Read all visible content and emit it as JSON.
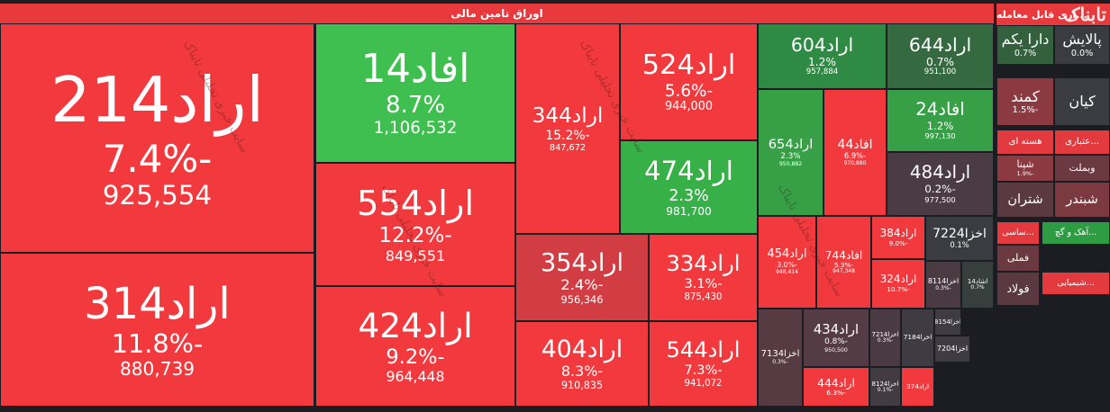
{
  "header": {
    "title": "اوراق تامین مالی"
  },
  "tiles": [
    {
      "name": "اراد214",
      "change": "-7.4%",
      "value": "925,554",
      "color": "#f23a3e"
    },
    {
      "name": "اراد314",
      "change": "-11.8%",
      "value": "880,739",
      "color": "#f23a3e"
    },
    {
      "name": "افاد14",
      "change": "8.7%",
      "value": "1,106,532",
      "color": "#3fbf4f"
    },
    {
      "name": "اراد554",
      "change": "-12.2%",
      "value": "849,551",
      "color": "#f23a3e"
    },
    {
      "name": "اراد424",
      "change": "-9.2%",
      "value": "964,448",
      "color": "#f23a3e"
    },
    {
      "name": "اراد344",
      "change": "-15.2%",
      "value": "847,672",
      "color": "#f23a3e"
    },
    {
      "name": "اراد524",
      "change": "-5.6%",
      "value": "944,000",
      "color": "#f23a3e"
    },
    {
      "name": "اراد474",
      "change": "2.3%",
      "value": "981,700",
      "color": "#36b047"
    },
    {
      "name": "اراد354",
      "change": "-2.4%",
      "value": "956,346",
      "color": "#d13d42"
    },
    {
      "name": "اراد334",
      "change": "-3.1%",
      "value": "875,430",
      "color": "#f23a3e"
    },
    {
      "name": "اراد404",
      "change": "-8.3%",
      "value": "910,835",
      "color": "#f23a3e"
    },
    {
      "name": "اراد544",
      "change": "-7.3%",
      "value": "941,072",
      "color": "#f23a3e"
    },
    {
      "name": "اراد604",
      "change": "1.2%",
      "value": "957,884",
      "color": "#2f8a43"
    },
    {
      "name": "اراد644",
      "change": "0.7%",
      "value": "951,100",
      "color": "#356a40"
    },
    {
      "name": "اراد654",
      "change": "2.3%",
      "value": "950,882",
      "color": "#37a047"
    },
    {
      "name": "افاد44",
      "change": "-6.9%",
      "value": "970,880",
      "color": "#f23a3e"
    },
    {
      "name": "افاد24",
      "change": "1.2%",
      "value": "997,130",
      "color": "#37a047"
    },
    {
      "name": "اراد484",
      "change": "-0.2%",
      "value": "977,500",
      "color": "#4b3b42"
    },
    {
      "name": "اراد454",
      "change": "-3.0%",
      "value": "948,414",
      "color": "#f23a3e"
    },
    {
      "name": "افاد744",
      "change": "-5.3%",
      "value": "947,348",
      "color": "#f23a3e"
    },
    {
      "name": "اراد384",
      "change": "-9.0%",
      "color": "#f23a3e"
    },
    {
      "name": "اراد324",
      "change": "-10.7%",
      "color": "#f23a3e"
    },
    {
      "name": "اخزا7224",
      "change": "0.1%",
      "color": "#3a3c42"
    },
    {
      "name": "اخزا8114",
      "change": "-0.3%",
      "color": "#4a3a42"
    },
    {
      "name": "اشاد14",
      "change": "0.7%",
      "color": "#363f3c"
    },
    {
      "name": "اخزا7134",
      "change": "-0.3%",
      "color": "#573b43"
    },
    {
      "name": "اراد434",
      "change": "-0.8%",
      "value": "950,500",
      "color": "#553b43"
    },
    {
      "name": "اراد444",
      "change": "-6.3%",
      "color": "#f23a3e"
    },
    {
      "name": "اخزا7214",
      "change": "-0.3%",
      "color": "#4a3a42"
    },
    {
      "name": "اخزا7184",
      "color": "#3e3c42"
    },
    {
      "name": "اخزا8154",
      "color": "#3e3c42"
    },
    {
      "name": "اخزا8124",
      "change": "-0.1%",
      "color": "#433b42"
    },
    {
      "name": "اراد374",
      "color": "#f23a3e"
    },
    {
      "name": "اخزا7204",
      "color": "#3e3c42"
    }
  ],
  "side_panel": {
    "title": "...اری قابل معامله",
    "tiles": [
      {
        "name": "پالایش",
        "change": "0.0%",
        "color": "#3b3c42"
      },
      {
        "name": "دارا یکم",
        "change": "0.7%",
        "color": "#33603d"
      },
      {
        "name": "کمند",
        "change": "-1.5%",
        "color": "#8a3a40"
      },
      {
        "name": "کیان",
        "color": "#3b3c42"
      },
      {
        "name": "هسته ای",
        "color": "#e23a3e"
      },
      {
        "name": "...عتباری",
        "color": "#e23a3e"
      },
      {
        "name": "شپنا",
        "change": "-1.9%",
        "color": "#8a3a40"
      },
      {
        "name": "وبملت",
        "color": "#6a3a40"
      },
      {
        "name": "شتران",
        "color": "#5a3a40"
      },
      {
        "name": "شبندر",
        "color": "#7a3a40"
      },
      {
        "name": "...ساسی",
        "color": "#e23a3e"
      },
      {
        "name": "...آهک و گچ",
        "color": "#2e9c43"
      },
      {
        "name": "فملی",
        "color": "#6a3a40"
      },
      {
        "name": "فولاد",
        "color": "#5a3a40"
      },
      {
        "name": "...شیمیایی",
        "color": "#e23a3e"
      }
    ]
  },
  "watermark": "تابناک",
  "diagonal_watermark": "سایت خبری تحلیلی تابناک"
}
